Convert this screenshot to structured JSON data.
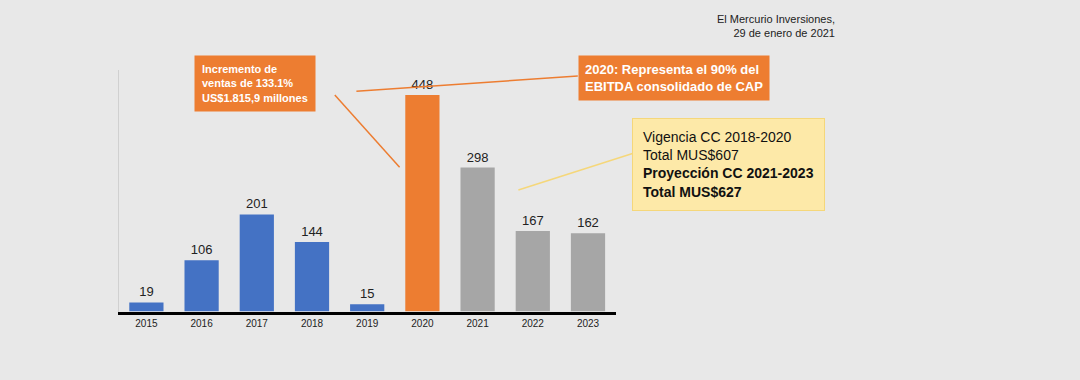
{
  "chart_data": {
    "type": "bar",
    "categories": [
      "2015",
      "2016",
      "2017",
      "2018",
      "2019",
      "2020",
      "2021",
      "2022",
      "2023"
    ],
    "values": [
      19,
      106,
      201,
      144,
      15,
      448,
      298,
      167,
      162
    ],
    "colors": [
      "#4472c4",
      "#4472c4",
      "#4472c4",
      "#4472c4",
      "#4472c4",
      "#ed7d31",
      "#a6a6a6",
      "#a6a6a6",
      "#a6a6a6"
    ],
    "data_labels": true,
    "tick_labels": "x",
    "grid": false,
    "ylim": [
      0,
      500
    ],
    "source": [
      "El Mercurio Inversiones,",
      "29 de enero de 2021"
    ],
    "annotations": [
      {
        "lines": [
          "Incremento de",
          "ventas de 133.1%",
          "US$1.815,9 millones"
        ]
      },
      {
        "lines": [
          "2020: Representa el 90% del",
          "EBITDA consolidado de CAP"
        ]
      },
      {
        "lines": [
          "Vigencia CC 2018-2020",
          "Total MUS$607",
          "Proyección CC 2021-2023",
          "Total MUS$627"
        ]
      }
    ]
  }
}
